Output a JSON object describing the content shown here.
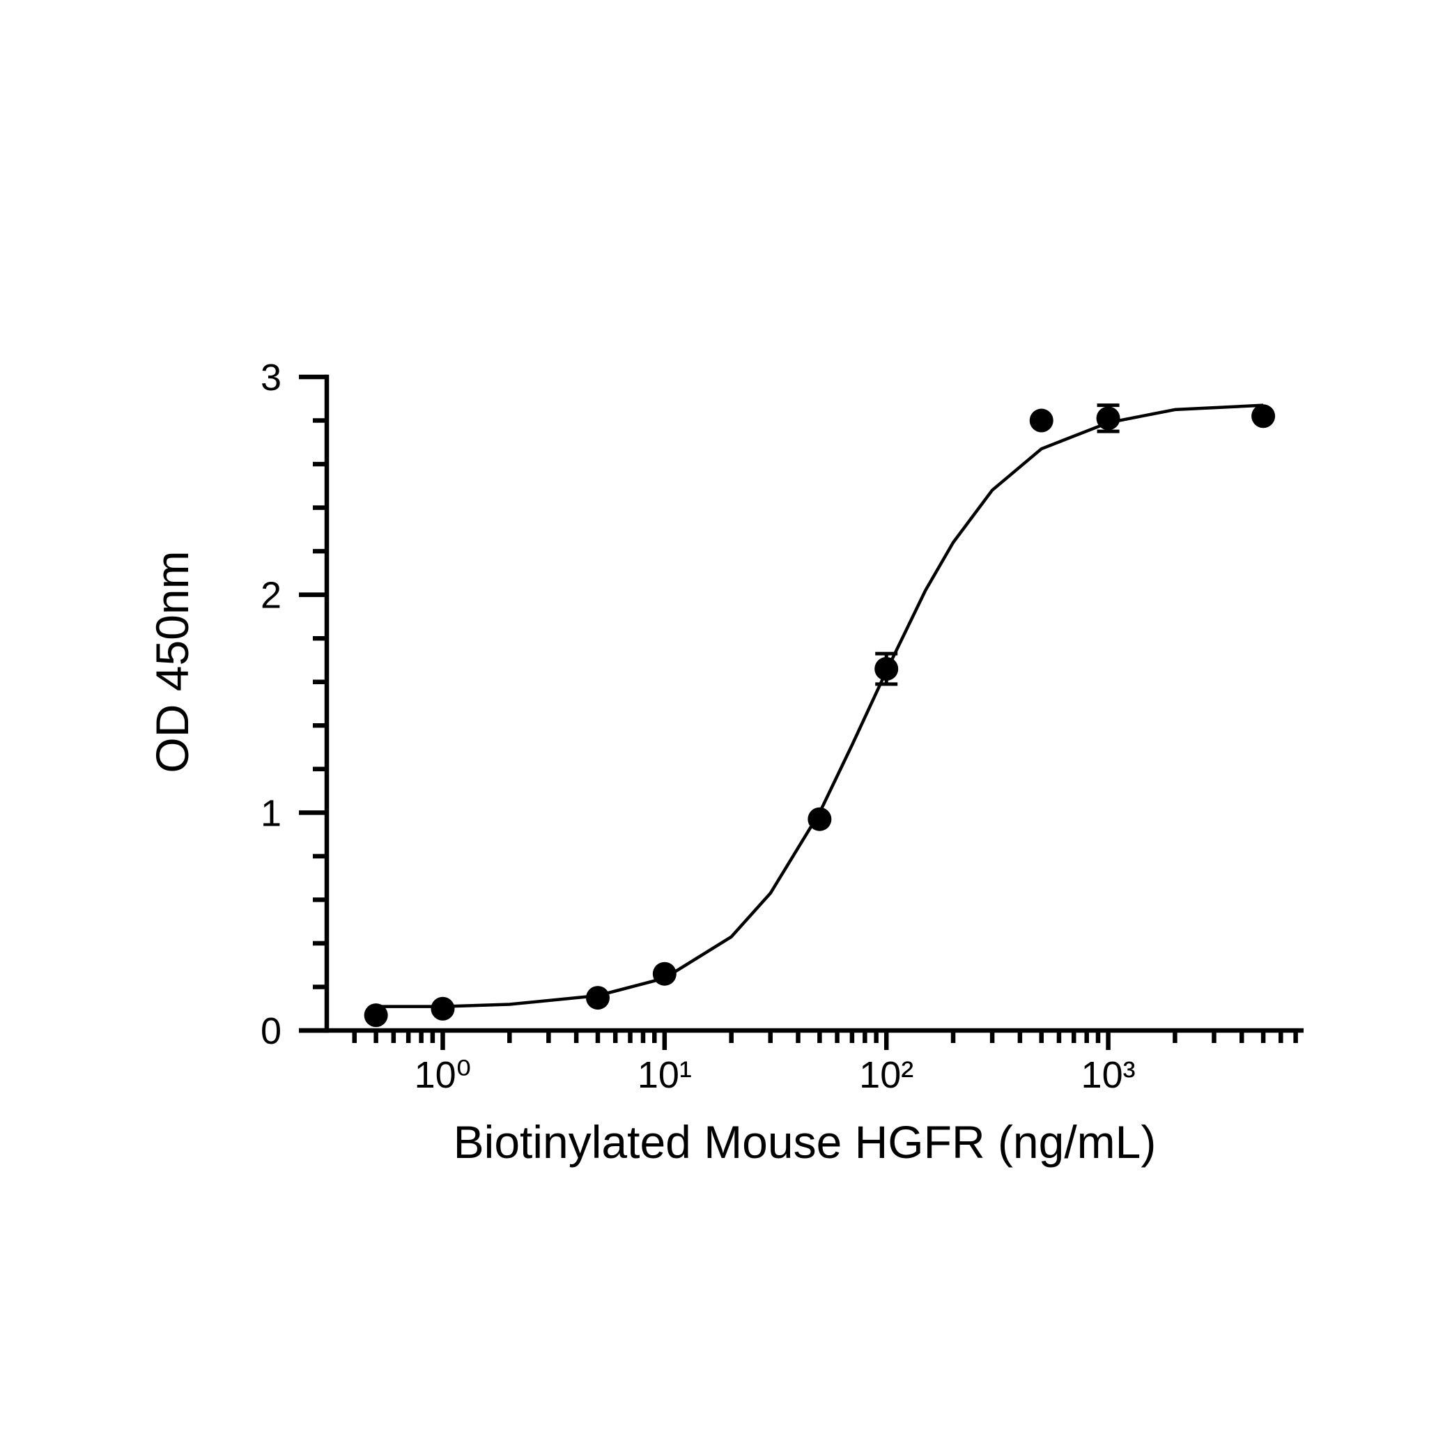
{
  "chart_data": {
    "type": "scatter",
    "x_label": "Biotinylated Mouse HGFR (ng/mL)",
    "y_label": "OD 450nm",
    "x_scale": "log",
    "xlim": [
      0.3,
      7600
    ],
    "xticks": [
      {
        "value": 1,
        "label": "10⁰"
      },
      {
        "value": 10,
        "label": "10¹"
      },
      {
        "value": 100,
        "label": "10²"
      },
      {
        "value": 1000,
        "label": "10³"
      }
    ],
    "xminorticks": [
      0.4,
      0.5,
      0.6,
      0.7,
      0.8,
      0.9,
      2,
      3,
      4,
      5,
      6,
      7,
      8,
      9,
      20,
      30,
      40,
      50,
      60,
      70,
      80,
      90,
      200,
      300,
      400,
      500,
      600,
      700,
      800,
      900,
      2000,
      3000,
      4000,
      5000,
      6000,
      7000
    ],
    "ylim": [
      0,
      3
    ],
    "yticks": [
      0,
      1,
      2,
      3
    ],
    "yminorticks": [
      0.2,
      0.4,
      0.6,
      0.8,
      1.2,
      1.4,
      1.6,
      1.8,
      2.2,
      2.4,
      2.6,
      2.8
    ],
    "series": [
      {
        "type": "scatter",
        "color": "#000000",
        "x": [
          0.5,
          1,
          5,
          10,
          50,
          100,
          500,
          1000,
          5000
        ],
        "values": [
          0.07,
          0.1,
          0.15,
          0.26,
          0.97,
          1.66,
          2.8,
          2.81,
          2.82
        ],
        "errors": [
          null,
          null,
          null,
          null,
          null,
          0.07,
          null,
          0.06,
          null
        ]
      },
      {
        "type": "line",
        "color": "#000000",
        "x": [
          0.5,
          1,
          2,
          5,
          10,
          20,
          30,
          50,
          70,
          100,
          150,
          200,
          300,
          500,
          1000,
          2000,
          5000
        ],
        "values": [
          0.11,
          0.11,
          0.12,
          0.16,
          0.24,
          0.43,
          0.63,
          1.0,
          1.31,
          1.65,
          2.02,
          2.24,
          2.48,
          2.67,
          2.79,
          2.85,
          2.87
        ]
      }
    ]
  }
}
